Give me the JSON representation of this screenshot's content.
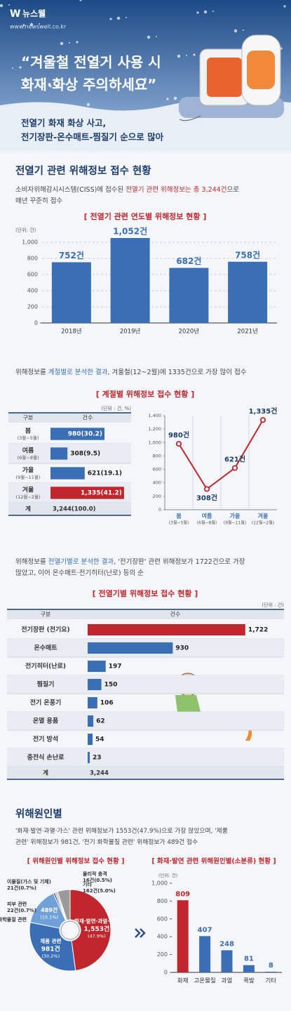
{
  "header": {
    "brand": "뉴스웰",
    "url": "www.newswell.co.kr",
    "title": [
      "“겨울철 전열기 사용 시",
      "화재·화상 주의하세요”"
    ],
    "subtitle": [
      "전열기 화재 화상 사고,",
      "전기장판-온수매트-찜질기 순으로 많아"
    ]
  },
  "sections": [
    {
      "heading": "전열기 관련 위해정보 접수 현황",
      "highlight_color": "#c0272d",
      "text": [
        [
          "소비자위해감시시스템(CISS)에 접수된 ",
          "전열기 관련 위해정보는 총 3,244건",
          "으로"
        ],
        [
          "매년 꾸준히 접수"
        ]
      ]
    },
    {
      "highlight_color": "#3b6fb5",
      "text": [
        [
          "위해정보를 ",
          "계절별로 분석한 결과",
          ", 겨울철(12~2월)에 1335건으로 가장 많이 접수"
        ]
      ]
    },
    {
      "highlight_color": "#3b6fb5",
      "text": [
        [
          "위해정보를 ",
          "전열기별로 분석한 결과",
          ", '전기장판' 관련 위해정보가 1722건으로 가장"
        ],
        [
          "많았고, 이어 온수매트·전기히터(난로) 등의 순"
        ]
      ]
    },
    {
      "heading": "위해원인별",
      "highlight_color": "#3b6fb5",
      "text": [
        [
          "'화재·발연·과열·가스' 관련 위해정보가 1553건(47.9%)으로 가장 많았으며, '제품"
        ],
        [
          "관련' 위해정보가 981건, '전기 화학물질 관련' 위해정보가 489건 접수"
        ]
      ]
    }
  ],
  "chart_data": [
    {
      "type": "bar",
      "title": "[ 전열기 관련 연도별 위해정보 현황 ]",
      "unit": "(단위: 건)",
      "categories": [
        "2018년",
        "2019년",
        "2020년",
        "2021년"
      ],
      "values": [
        752,
        1052,
        682,
        758
      ],
      "value_labels": [
        "752건",
        "1,052건",
        "682건",
        "758건"
      ],
      "color": "#3b6fb5",
      "ylim": [
        0,
        1100
      ],
      "yticks": [
        0,
        200,
        400,
        600,
        800,
        {
          "value": 1000,
          "label": "1,000"
        }
      ],
      "grid": true
    },
    {
      "type": "hbar-table",
      "title": "[ 계절별 위해정보 접수 현황 ]",
      "unit": "(단위 : 건, %)",
      "header": [
        "구분",
        "건수"
      ],
      "categories": [
        "봄",
        "여름",
        "가을",
        "겨울"
      ],
      "category_notes": [
        "(3월~5월)",
        "(6월~8월)",
        "(9월~11월)",
        "(12월~2월)"
      ],
      "values": [
        980,
        308,
        621,
        1335
      ],
      "value_labels": [
        "980(30.2)",
        "308(9.5)",
        "621(19.1)",
        "1,335(41.2)"
      ],
      "colors": [
        "#3b6fb5",
        "#3b6fb5",
        "#3b6fb5",
        "#c0272d"
      ],
      "xlim": [
        0,
        1400
      ],
      "total": [
        "계",
        "3,244(100.0)"
      ]
    },
    {
      "type": "line",
      "categories": [
        "봄",
        "여름",
        "가을",
        "겨울"
      ],
      "category_notes": [
        "(3월~5월)",
        "(6월~8월)",
        "(9월~11월)",
        "(12월~2월)"
      ],
      "values": [
        980,
        308,
        621,
        1335
      ],
      "value_labels": [
        "980건",
        "308건",
        "621건",
        "1,335건"
      ],
      "color": "#c0272d",
      "ylim": [
        0,
        1400
      ],
      "yticks": [
        0,
        200,
        400,
        600,
        800,
        {
          "value": 1000,
          "label": "1,000"
        },
        {
          "value": 1200,
          "label": "1,200"
        },
        {
          "value": 1400,
          "label": "1,400"
        }
      ]
    },
    {
      "type": "hbar-table",
      "title": "[ 전열기별 위해정보 접수 현황 ]",
      "unit": "(단위 : 건)",
      "header": [
        "구분",
        "건수"
      ],
      "categories": [
        "전기장판 (전기요)",
        "온수매트",
        "전기히터(난로)",
        "찜질기",
        "전기 온풍기",
        "온열 용품",
        "전기 방석",
        "충전식 손난로"
      ],
      "values": [
        1722,
        930,
        197,
        150,
        106,
        62,
        54,
        23
      ],
      "value_labels": [
        "1,722",
        "930",
        "197",
        "150",
        "106",
        "62",
        "54",
        "23"
      ],
      "colors": [
        "#c0272d",
        "#3b6fb5",
        "#3b6fb5",
        "#3b6fb5",
        "#3b6fb5",
        "#3b6fb5",
        "#3b6fb5",
        "#3b6fb5"
      ],
      "xlim": [
        0,
        1800
      ],
      "total": [
        "계",
        "3,244"
      ]
    },
    {
      "type": "pie",
      "title": "[ 위해원인별 위해정보 접수 현황 ]",
      "categories": [
        "화재·발연·과열·가스",
        "제품 관련",
        "전기 및 화학물질 관련",
        "피부 관련",
        "이물질(가스 및 기체)",
        "물리적 충격",
        "기타"
      ],
      "values": [
        1553,
        981,
        489,
        22,
        21,
        16,
        162
      ],
      "value_labels": [
        "1,553건",
        "981건",
        "489건",
        "22건",
        "21건",
        "16건",
        "162건"
      ],
      "percent_labels": [
        "(47.9%)",
        "(30.2%)",
        "(15.1%)",
        "(0.7%)",
        "(0.7%)",
        "(0.5%)",
        "(5.0%)"
      ],
      "colors": [
        "#c0272d",
        "#3b6fb5",
        "#6fa0d8",
        "#2d4f8a",
        "#8fb3e0",
        "#e07a7a",
        "#9a9a9a"
      ]
    },
    {
      "type": "bar",
      "title": "[ 화재·발연 관련 위해원인별(소분류) 현황 ]",
      "unit": "(단위: 건)",
      "categories": [
        "화재",
        "고온물질",
        "과열",
        "폭발",
        "기타"
      ],
      "values": [
        809,
        407,
        248,
        81,
        8
      ],
      "colors": [
        "#c0272d",
        "#3b6fb5",
        "#3b6fb5",
        "#3b6fb5",
        "#3b6fb5"
      ],
      "ylim": [
        0,
        1000
      ],
      "yticks": [
        0,
        200,
        400,
        600,
        800,
        {
          "value": 1000,
          "label": "1,000"
        }
      ]
    }
  ]
}
